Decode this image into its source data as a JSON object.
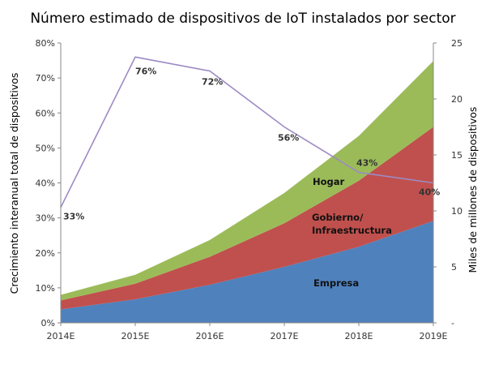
{
  "chart_data": {
    "type": "area",
    "title": "Número estimado de dispositivos de IoT instalados por sector",
    "categories": [
      "2014E",
      "2015E",
      "2016E",
      "2017E",
      "2018E",
      "2019E"
    ],
    "y_left": {
      "label": "Crecimiento interanual total de dispositivos",
      "ylim": [
        0,
        80
      ],
      "ticks": [
        0,
        10,
        20,
        30,
        40,
        50,
        60,
        70,
        80
      ],
      "tick_labels": [
        "0%",
        "10%",
        "20%",
        "30%",
        "40%",
        "50%",
        "60%",
        "70%",
        "80%"
      ]
    },
    "y_right": {
      "label": "Miles de millones de dispositivos",
      "ylim": [
        0,
        25
      ],
      "ticks": [
        0,
        5,
        10,
        15,
        20,
        25
      ],
      "tick_labels": [
        "-",
        "5",
        "10",
        "15",
        "20",
        "25"
      ]
    },
    "stacked_series": [
      {
        "name": "Empresa",
        "color": "#4f81bd",
        "values": [
          1.2,
          2.1,
          3.4,
          5.0,
          6.8,
          9.1
        ]
      },
      {
        "name": "Gobierno/ Infraestructura",
        "color": "#c0504d",
        "values": [
          0.8,
          1.4,
          2.5,
          3.9,
          5.9,
          8.4
        ]
      },
      {
        "name": "Hogar",
        "color": "#9bbb59",
        "values": [
          0.5,
          0.8,
          1.5,
          2.7,
          4.0,
          5.9
        ]
      }
    ],
    "line_series": {
      "color": "#9d8ac4",
      "values": [
        33,
        76,
        72,
        56,
        43,
        40
      ],
      "labels": [
        "33%",
        "76%",
        "72%",
        "56%",
        "43%",
        "40%"
      ]
    },
    "area_labels": {
      "empresa": "Empresa",
      "gobierno_line1": "Gobierno/",
      "gobierno_line2": "Infraestructura",
      "hogar": "Hogar"
    },
    "grid": false,
    "legend": "none"
  }
}
